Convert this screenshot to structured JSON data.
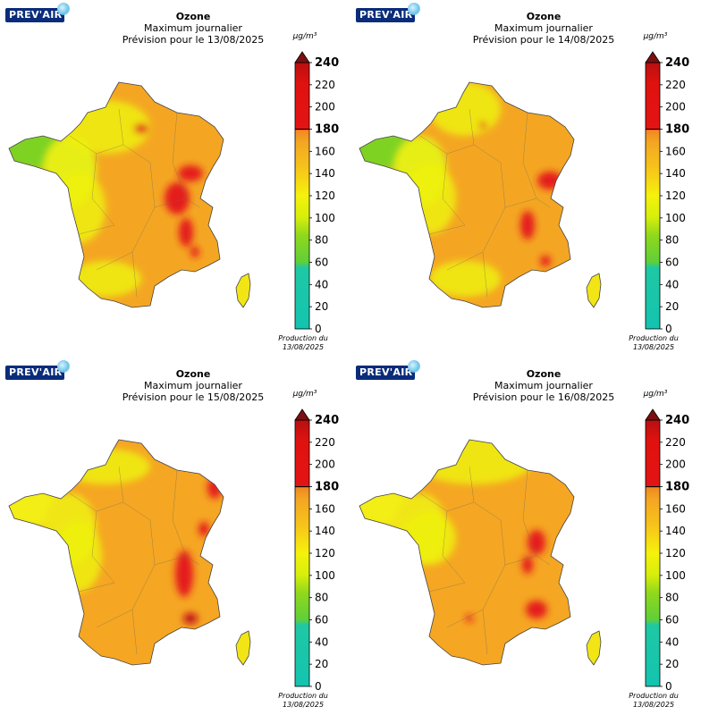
{
  "brand": {
    "logo": "PREV'AIR"
  },
  "colorbar": {
    "unit": "μg/m³",
    "production_label": "Production du",
    "production_date": "13/08/2025",
    "ticks": [
      "0",
      "20",
      "40",
      "60",
      "80",
      "100",
      "120",
      "140",
      "160",
      "180",
      "200",
      "220",
      "240"
    ],
    "threshold": "180",
    "colors": {
      "low": "#16c7ad",
      "mid_green": "#7ed321",
      "yellow": "#f2f20a",
      "orange": "#f4a623",
      "red": "#e40f0f",
      "top": "#7a1010"
    }
  },
  "panels": [
    {
      "pollutant": "Ozone",
      "metric": "Maximum journalier",
      "forecast": "Prévision pour le 13/08/2025"
    },
    {
      "pollutant": "Ozone",
      "metric": "Maximum journalier",
      "forecast": "Prévision pour le 14/08/2025"
    },
    {
      "pollutant": "Ozone",
      "metric": "Maximum journalier",
      "forecast": "Prévision pour le 15/08/2025"
    },
    {
      "pollutant": "Ozone",
      "metric": "Maximum journalier",
      "forecast": "Prévision pour le 16/08/2025"
    }
  ]
}
